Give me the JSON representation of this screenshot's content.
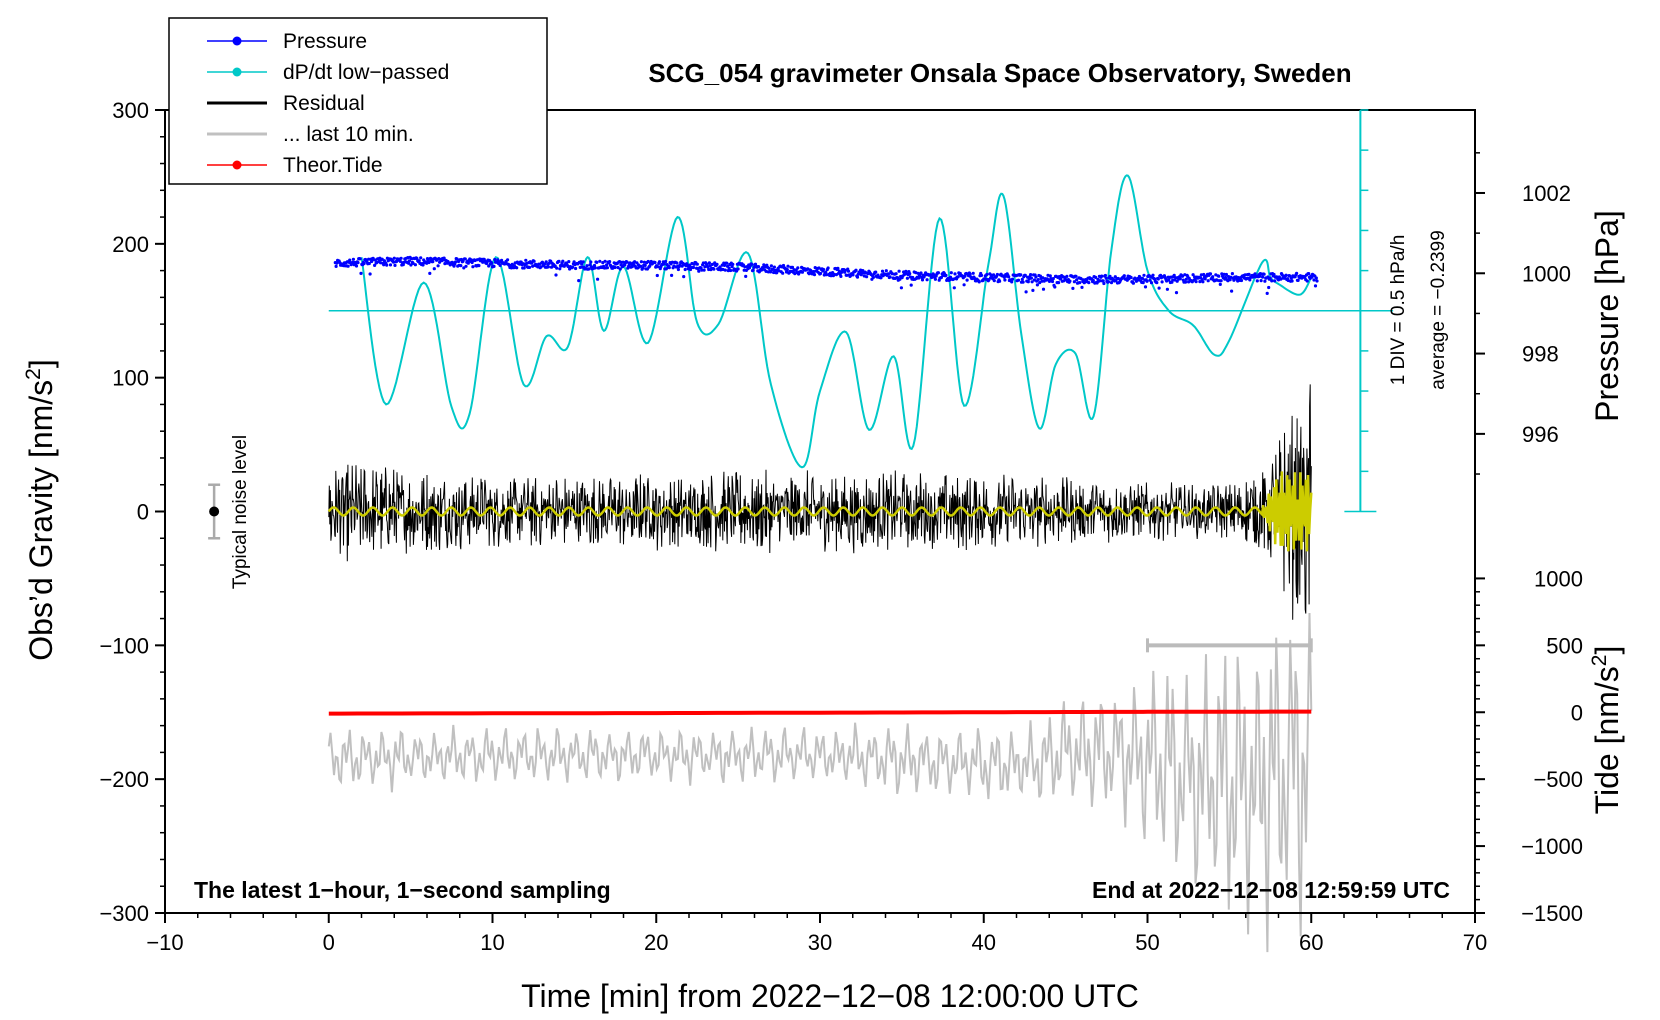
{
  "chart_data": {
    "type": "line",
    "title": "SCG_054 gravimeter Onsala Space Observatory, Sweden",
    "xlabel": "Time [min] from 2022−12−08 12:00:00 UTC",
    "ylabel_left": "Obs’d Gravity [nm/s",
    "ylabel_left_sup": "2",
    "ylabel_left_close": "]",
    "ylabel_right_pressure": "Pressure [hPa]",
    "ylabel_right_tide": "Tide [nm/s",
    "ylabel_right_tide_sup": "2",
    "ylabel_right_tide_close": "]",
    "xlim": [
      -10,
      70
    ],
    "ylim": [
      -300,
      300
    ],
    "x_ticks": [
      -10,
      0,
      10,
      20,
      30,
      40,
      50,
      60,
      70
    ],
    "x_tick_labels": [
      "−10",
      "0",
      "10",
      "20",
      "30",
      "40",
      "50",
      "60",
      "70"
    ],
    "y_ticks": [
      -300,
      -200,
      -100,
      0,
      100,
      200,
      300
    ],
    "y_tick_labels": [
      "−300",
      "−200",
      "−100",
      "0",
      "100",
      "200",
      "300"
    ],
    "pressure_axis": {
      "ticks": [
        996,
        998,
        1000,
        1002
      ],
      "tick_labels": [
        "996",
        "998",
        "1000",
        "1002"
      ],
      "gravity_at_996": 58,
      "gravity_per_hpa": 30
    },
    "tide_axis": {
      "ticks": [
        -1500,
        -1000,
        -500,
        0,
        500,
        1000
      ],
      "tick_labels": [
        "−1500",
        "−1000",
        "−500",
        "0",
        "500",
        "1000"
      ],
      "gravity_at_0": -150,
      "gravity_per_nms2": 0.1
    },
    "legend": {
      "position": "top-left",
      "entries": [
        {
          "label": "Pressure",
          "color": "#0000ff",
          "marker": true
        },
        {
          "label": "dP/dt low−passed",
          "color": "#00c8c8",
          "marker": true
        },
        {
          "label": "Residual",
          "color": "#000000",
          "marker": false
        },
        {
          "label": "... last 10 min.",
          "color": "#c0c0c0",
          "marker": false
        },
        {
          "label": "Theor.Tide",
          "color": "#ff0000",
          "marker": true
        }
      ]
    },
    "annotations": {
      "bottom_left": "The latest 1−hour, 1−second sampling",
      "bottom_right": "End at 2022−12−08 12:59:59 UTC",
      "noise": "Typical noise level",
      "div_label": "1 DIV = 0.5 hPa/h",
      "average_label": "average = −0.2399"
    },
    "noise_bar": {
      "x": -7,
      "center": 0,
      "half_range": 20
    },
    "dpdt_scale_bar": {
      "x": 63,
      "y_from": 0,
      "y_to": 300,
      "divisions": 10,
      "baseline": 150
    },
    "last10_range_bar": {
      "x_from": 50,
      "x_to": 60,
      "y": -100
    },
    "series": [
      {
        "name": "Pressure",
        "color": "#0000ff",
        "unit": "hPa",
        "x": [
          0,
          5,
          10,
          15,
          20,
          25,
          30,
          35,
          40,
          45,
          50,
          55,
          60
        ],
        "values": [
          1000.25,
          1000.3,
          1000.25,
          1000.2,
          1000.2,
          1000.15,
          1000.05,
          999.95,
          999.9,
          999.85,
          999.85,
          999.9,
          999.9
        ]
      },
      {
        "name": "dP/dt low−passed",
        "color": "#00c8c8",
        "unit": "gravity-axis",
        "x": [
          2,
          3.5,
          5.8,
          7.5,
          8.6,
          10.2,
          11.9,
          13.3,
          14.6,
          15.8,
          16.8,
          18.0,
          19.5,
          21.3,
          22.5,
          23.8,
          25.6,
          27.0,
          28.9,
          30.0,
          31.6,
          33.0,
          34.5,
          35.7,
          37.3,
          38.8,
          40.3,
          41.2,
          42.3,
          43.4,
          44.4,
          45.6,
          46.7,
          47.8,
          48.8,
          50.0,
          51.3,
          52.8,
          54.1,
          55.0,
          57.0,
          57.5,
          58.0,
          59.3,
          60.0
        ],
        "values": [
          190,
          80,
          171,
          78,
          73,
          190,
          95,
          131,
          123,
          190,
          135,
          183,
          126,
          220,
          141,
          140,
          193,
          95,
          33,
          90,
          134,
          61,
          116,
          49,
          219,
          79,
          186,
          236,
          132,
          62,
          110,
          118,
          71,
          196,
          251,
          180,
          150,
          139,
          117,
          128,
          186,
          175,
          170,
          162,
          175
        ]
      },
      {
        "name": "Residual",
        "color": "#000000",
        "unit": "nm/s2",
        "x": [
          0,
          10,
          20,
          30,
          40,
          50,
          55,
          57,
          58,
          59,
          60
        ],
        "amplitude": [
          40,
          28,
          30,
          32,
          30,
          22,
          22,
          35,
          60,
          85,
          110
        ]
      },
      {
        "name": "Residual (smoothed)",
        "color": "#cccc00",
        "unit": "nm/s2",
        "x": [
          0,
          57,
          58,
          60
        ],
        "amplitude": [
          3,
          3,
          30,
          30
        ]
      },
      {
        "name": "... last 10 min.",
        "color": "#c0c0c0",
        "unit": "nm/s2",
        "x": [
          0,
          10,
          20,
          30,
          35,
          43,
          45,
          48,
          52,
          56,
          58,
          60
        ],
        "center": [
          -185,
          -182,
          -182,
          -182,
          -185,
          -190,
          -180,
          -178,
          -195,
          -205,
          -195,
          -190
        ],
        "amplitude": [
          22,
          20,
          20,
          20,
          25,
          30,
          40,
          50,
          80,
          110,
          120,
          140
        ]
      },
      {
        "name": "Theor.Tide",
        "color": "#ff0000",
        "unit": "nm/s2",
        "x": [
          0,
          10,
          20,
          30,
          40,
          50,
          60
        ],
        "values": [
          -10,
          -8,
          -6,
          -3,
          0,
          3,
          5
        ]
      }
    ]
  }
}
